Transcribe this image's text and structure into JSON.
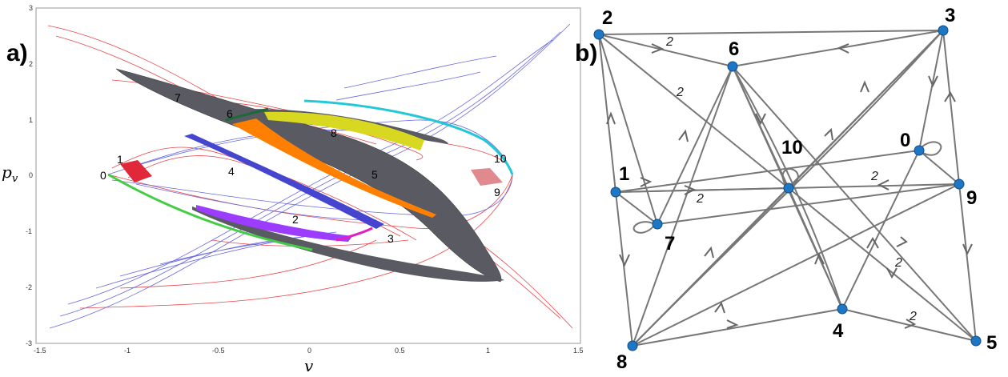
{
  "panel_a": {
    "label": "a)",
    "xlabel": "v",
    "ylabel_main": "p",
    "ylabel_sub": "v",
    "xticks": [
      "-1.5",
      "-1",
      "-0.5",
      "0",
      "0.5",
      "1",
      "1.5"
    ],
    "yticks": [
      "3",
      "2",
      "1",
      "0",
      "-1",
      "-2",
      "-3"
    ],
    "regions": [
      "0",
      "1",
      "2",
      "3",
      "4",
      "5",
      "6",
      "7",
      "8",
      "9",
      "10"
    ]
  },
  "panel_b": {
    "label": "b)",
    "nodes": [
      "0",
      "1",
      "2",
      "3",
      "4",
      "5",
      "6",
      "7",
      "8",
      "9",
      "10"
    ],
    "edge_weight_label": "2"
  },
  "colors": {
    "red_curve": "#e8474a",
    "blue_curve": "#6a6ae0",
    "dark_band": "#5a5a62",
    "node": "#1f77c4",
    "edge": "#777777"
  }
}
